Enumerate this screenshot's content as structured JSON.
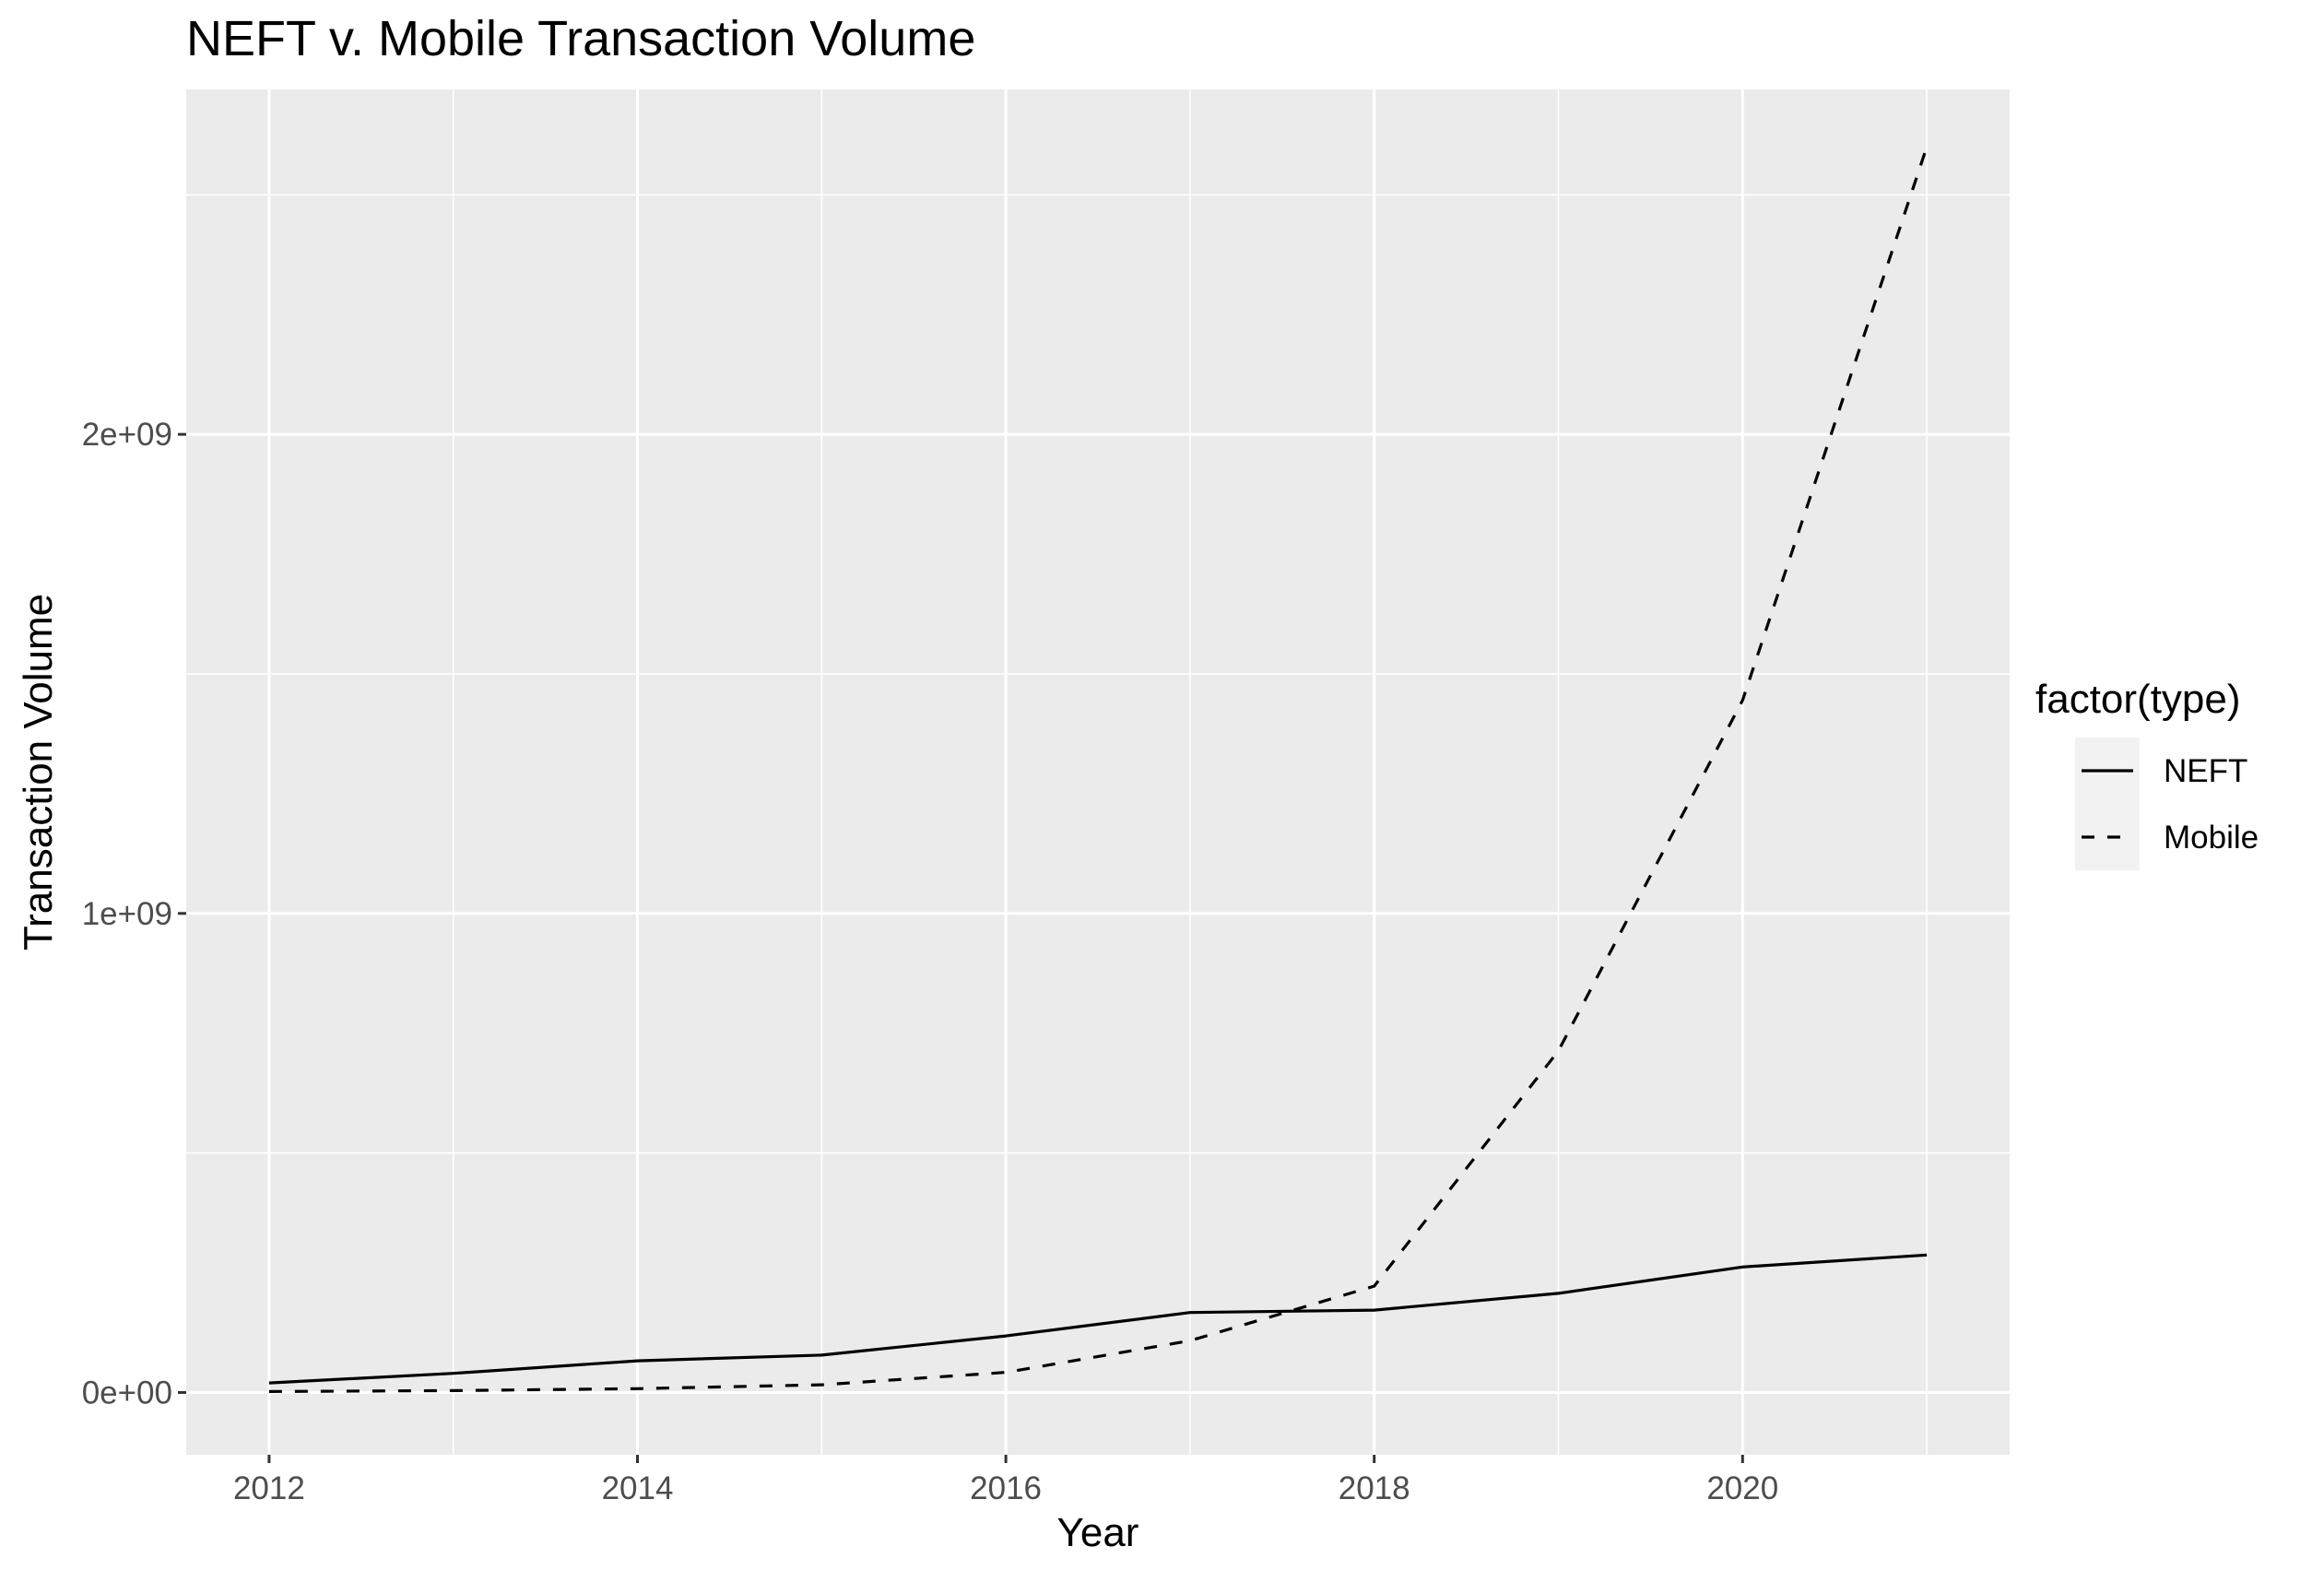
{
  "chart_data": {
    "type": "line",
    "title": "NEFT v. Mobile Transaction Volume",
    "xlabel": "Year",
    "ylabel": "Transaction Volume",
    "x": [
      2012,
      2013,
      2014,
      2015,
      2016,
      2017,
      2018,
      2019,
      2020,
      2021
    ],
    "xlim": [
      2011.55,
      2021.45
    ],
    "ylim": [
      -130000000,
      2720000000
    ],
    "x_ticks": [
      2012,
      2014,
      2016,
      2018,
      2020
    ],
    "x_tick_labels": [
      "2012",
      "2014",
      "2016",
      "2018",
      "2020"
    ],
    "y_ticks": [
      0,
      1000000000,
      2000000000
    ],
    "y_tick_labels": [
      "0e+00",
      "1e+09",
      "2e+09"
    ],
    "grid": true,
    "legend_title": "factor(type)",
    "legend_position": "right",
    "series": [
      {
        "name": "NEFT",
        "linetype": "solid",
        "values": [
          20000000,
          40000000,
          66000000,
          78000000,
          118000000,
          167000000,
          172000000,
          207000000,
          262000000,
          287000000
        ]
      },
      {
        "name": "Mobile",
        "linetype": "dashed",
        "values": [
          2000000,
          4000000,
          8000000,
          16000000,
          42000000,
          108000000,
          222000000,
          713000000,
          1445000000,
          2600000000
        ]
      }
    ],
    "colors": {
      "panel_background": "#ebebeb",
      "grid_major": "#ffffff",
      "line": "#000000",
      "legend_key_background": "#f2f2f2"
    }
  }
}
